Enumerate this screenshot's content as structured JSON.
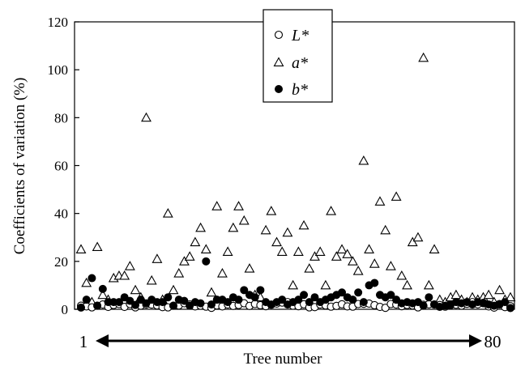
{
  "chart_data": {
    "type": "scatter",
    "ylabel": "Coefficients of variation (%)",
    "xlabel": "Tree number",
    "x_start_label": "1",
    "x_end_label": "80",
    "ylim": [
      0,
      120
    ],
    "yticks": [
      "0",
      "20",
      "40",
      "60",
      "80",
      "100",
      "120"
    ],
    "grid": false,
    "legend_position": "top-center",
    "series": [
      {
        "name": "L*",
        "marker": "circle-open",
        "values": [
          1.5,
          1.2,
          0.8,
          1.5,
          2.0,
          1.0,
          1.8,
          2.2,
          1.0,
          2.2,
          0.8,
          1.5,
          2.0,
          2.0,
          1.6,
          0.9,
          0.8,
          1.5,
          1.6,
          2.5,
          2.0,
          1.2,
          1.5,
          1.1,
          0.6,
          1.6,
          1.2,
          2.0,
          1.4,
          1.8,
          2.5,
          1.4,
          2.2,
          1.7,
          1.3,
          1.9,
          2.4,
          2.8,
          3.0,
          1.5,
          1.3,
          2.1,
          0.8,
          0.9,
          2.0,
          1.6,
          1.1,
          1.4,
          2.1,
          1.2,
          1.1,
          2.2,
          2.3,
          2.4,
          1.7,
          1.0,
          0.6,
          2.2,
          2.0,
          1.3,
          1.8,
          1.6,
          0.8,
          1.9,
          2.1,
          2.0,
          1.8,
          1.1,
          1.7,
          1.9,
          1.5,
          2.3,
          3.0,
          2.1,
          2.7,
          1.2,
          0.7,
          2.2,
          0.9,
          1.3
        ]
      },
      {
        "name": "a*",
        "marker": "triangle-open",
        "values": [
          25,
          11,
          3,
          26,
          6,
          4,
          13,
          14,
          14,
          18,
          8,
          5,
          80,
          12,
          21,
          4,
          40,
          8,
          15,
          20,
          22,
          28,
          34,
          25,
          7,
          43,
          15,
          24,
          34,
          43,
          37,
          17,
          6,
          5,
          33,
          41,
          28,
          24,
          32,
          10,
          24,
          35,
          17,
          22,
          24,
          10,
          41,
          22,
          25,
          23,
          20,
          16,
          62,
          25,
          19,
          45,
          33,
          18,
          47,
          14,
          10,
          28,
          30,
          105,
          10,
          25,
          4,
          3,
          5,
          6,
          4,
          3,
          5,
          4,
          5,
          6,
          3,
          8,
          4,
          5
        ]
      },
      {
        "name": "b*",
        "marker": "circle-filled",
        "values": [
          0.7,
          4,
          13,
          1.5,
          8.5,
          3,
          3,
          3,
          5,
          3.5,
          1.8,
          4,
          2.5,
          4,
          3,
          3,
          5,
          1.5,
          4,
          3.5,
          1.5,
          3,
          2.5,
          20,
          2,
          4,
          4,
          3,
          5,
          4,
          8,
          6,
          5,
          8,
          3,
          2,
          3,
          4,
          2,
          3,
          4,
          6,
          3,
          5,
          3,
          4,
          5,
          6,
          7,
          5,
          4,
          7,
          3,
          10,
          11,
          6,
          5,
          6,
          4,
          2.5,
          3,
          2.5,
          3,
          1.5,
          5,
          2,
          1,
          1.5,
          2,
          3,
          2.5,
          3,
          2,
          3,
          2.5,
          2,
          1.5,
          2,
          3,
          0.5
        ]
      }
    ]
  }
}
